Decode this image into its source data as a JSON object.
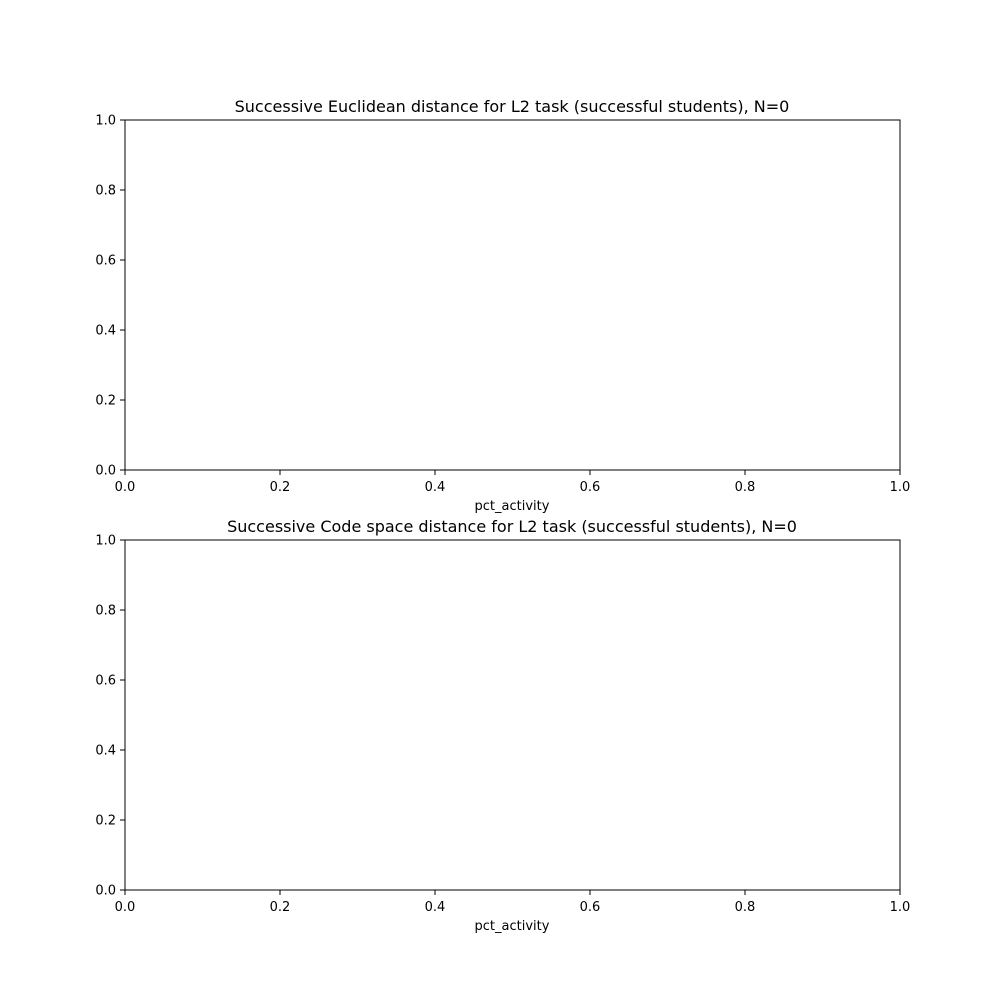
{
  "chart_data": [
    {
      "type": "line",
      "title": "Successive Euclidean distance for L2 task (successful students), N=0",
      "xlabel": "pct_activity",
      "ylabel": "",
      "xlim": [
        0,
        1
      ],
      "ylim": [
        0,
        1
      ],
      "xticks": [
        "0.0",
        "0.2",
        "0.4",
        "0.6",
        "0.8",
        "1.0"
      ],
      "yticks": [
        "0.0",
        "0.2",
        "0.4",
        "0.6",
        "0.8",
        "1.0"
      ],
      "grid": false,
      "series": []
    },
    {
      "type": "line",
      "title": "Successive Code space distance for L2 task (successful students), N=0",
      "xlabel": "pct_activity",
      "ylabel": "",
      "xlim": [
        0,
        1
      ],
      "ylim": [
        0,
        1
      ],
      "xticks": [
        "0.0",
        "0.2",
        "0.4",
        "0.6",
        "0.8",
        "1.0"
      ],
      "yticks": [
        "0.0",
        "0.2",
        "0.4",
        "0.6",
        "0.8",
        "1.0"
      ],
      "grid": false,
      "series": []
    }
  ]
}
